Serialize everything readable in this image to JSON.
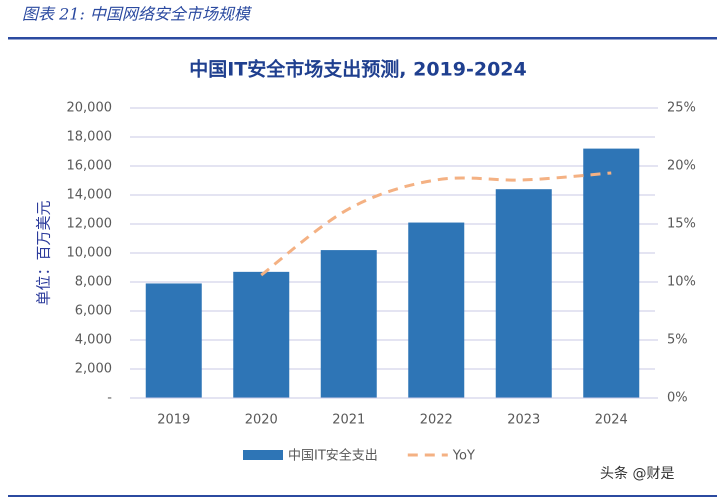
{
  "header": "图表 21: 中国网络安全市场规模",
  "watermark": "头条 @财是",
  "chart_data": {
    "type": "bar",
    "title": "中国IT安全市场支出预测, 2019-2024",
    "y_label": "单位：百万美元",
    "categories": [
      "2019",
      "2020",
      "2021",
      "2022",
      "2023",
      "2024"
    ],
    "series": [
      {
        "name": "中国IT安全支出",
        "color": "#2e75b6",
        "type": "bar",
        "values": [
          7900,
          8700,
          10200,
          12100,
          14400,
          17200
        ]
      },
      {
        "name": "YoY",
        "color": "#f4b183",
        "type": "line",
        "axis": "y2",
        "values": [
          null,
          10.6,
          16.3,
          18.8,
          18.8,
          19.4
        ]
      }
    ],
    "ylim": [
      0,
      20000
    ],
    "yticks": [
      {
        "value": 0,
        "label": "-"
      },
      {
        "value": 2000,
        "label": "2,000"
      },
      {
        "value": 4000,
        "label": "4,000"
      },
      {
        "value": 6000,
        "label": "6,000"
      },
      {
        "value": 8000,
        "label": "8,000"
      },
      {
        "value": 10000,
        "label": "10,000"
      },
      {
        "value": 12000,
        "label": "12,000"
      },
      {
        "value": 14000,
        "label": "14,000"
      },
      {
        "value": 16000,
        "label": "16,000"
      },
      {
        "value": 18000,
        "label": "18,000"
      },
      {
        "value": 20000,
        "label": "20,000"
      }
    ],
    "y2lim": [
      0,
      25
    ],
    "y2ticks": [
      {
        "value": 0,
        "label": "0%"
      },
      {
        "value": 5,
        "label": "5%"
      },
      {
        "value": 10,
        "label": "10%"
      },
      {
        "value": 15,
        "label": "15%"
      },
      {
        "value": 20,
        "label": "20%"
      },
      {
        "value": 25,
        "label": "25%"
      }
    ],
    "grid": true
  }
}
